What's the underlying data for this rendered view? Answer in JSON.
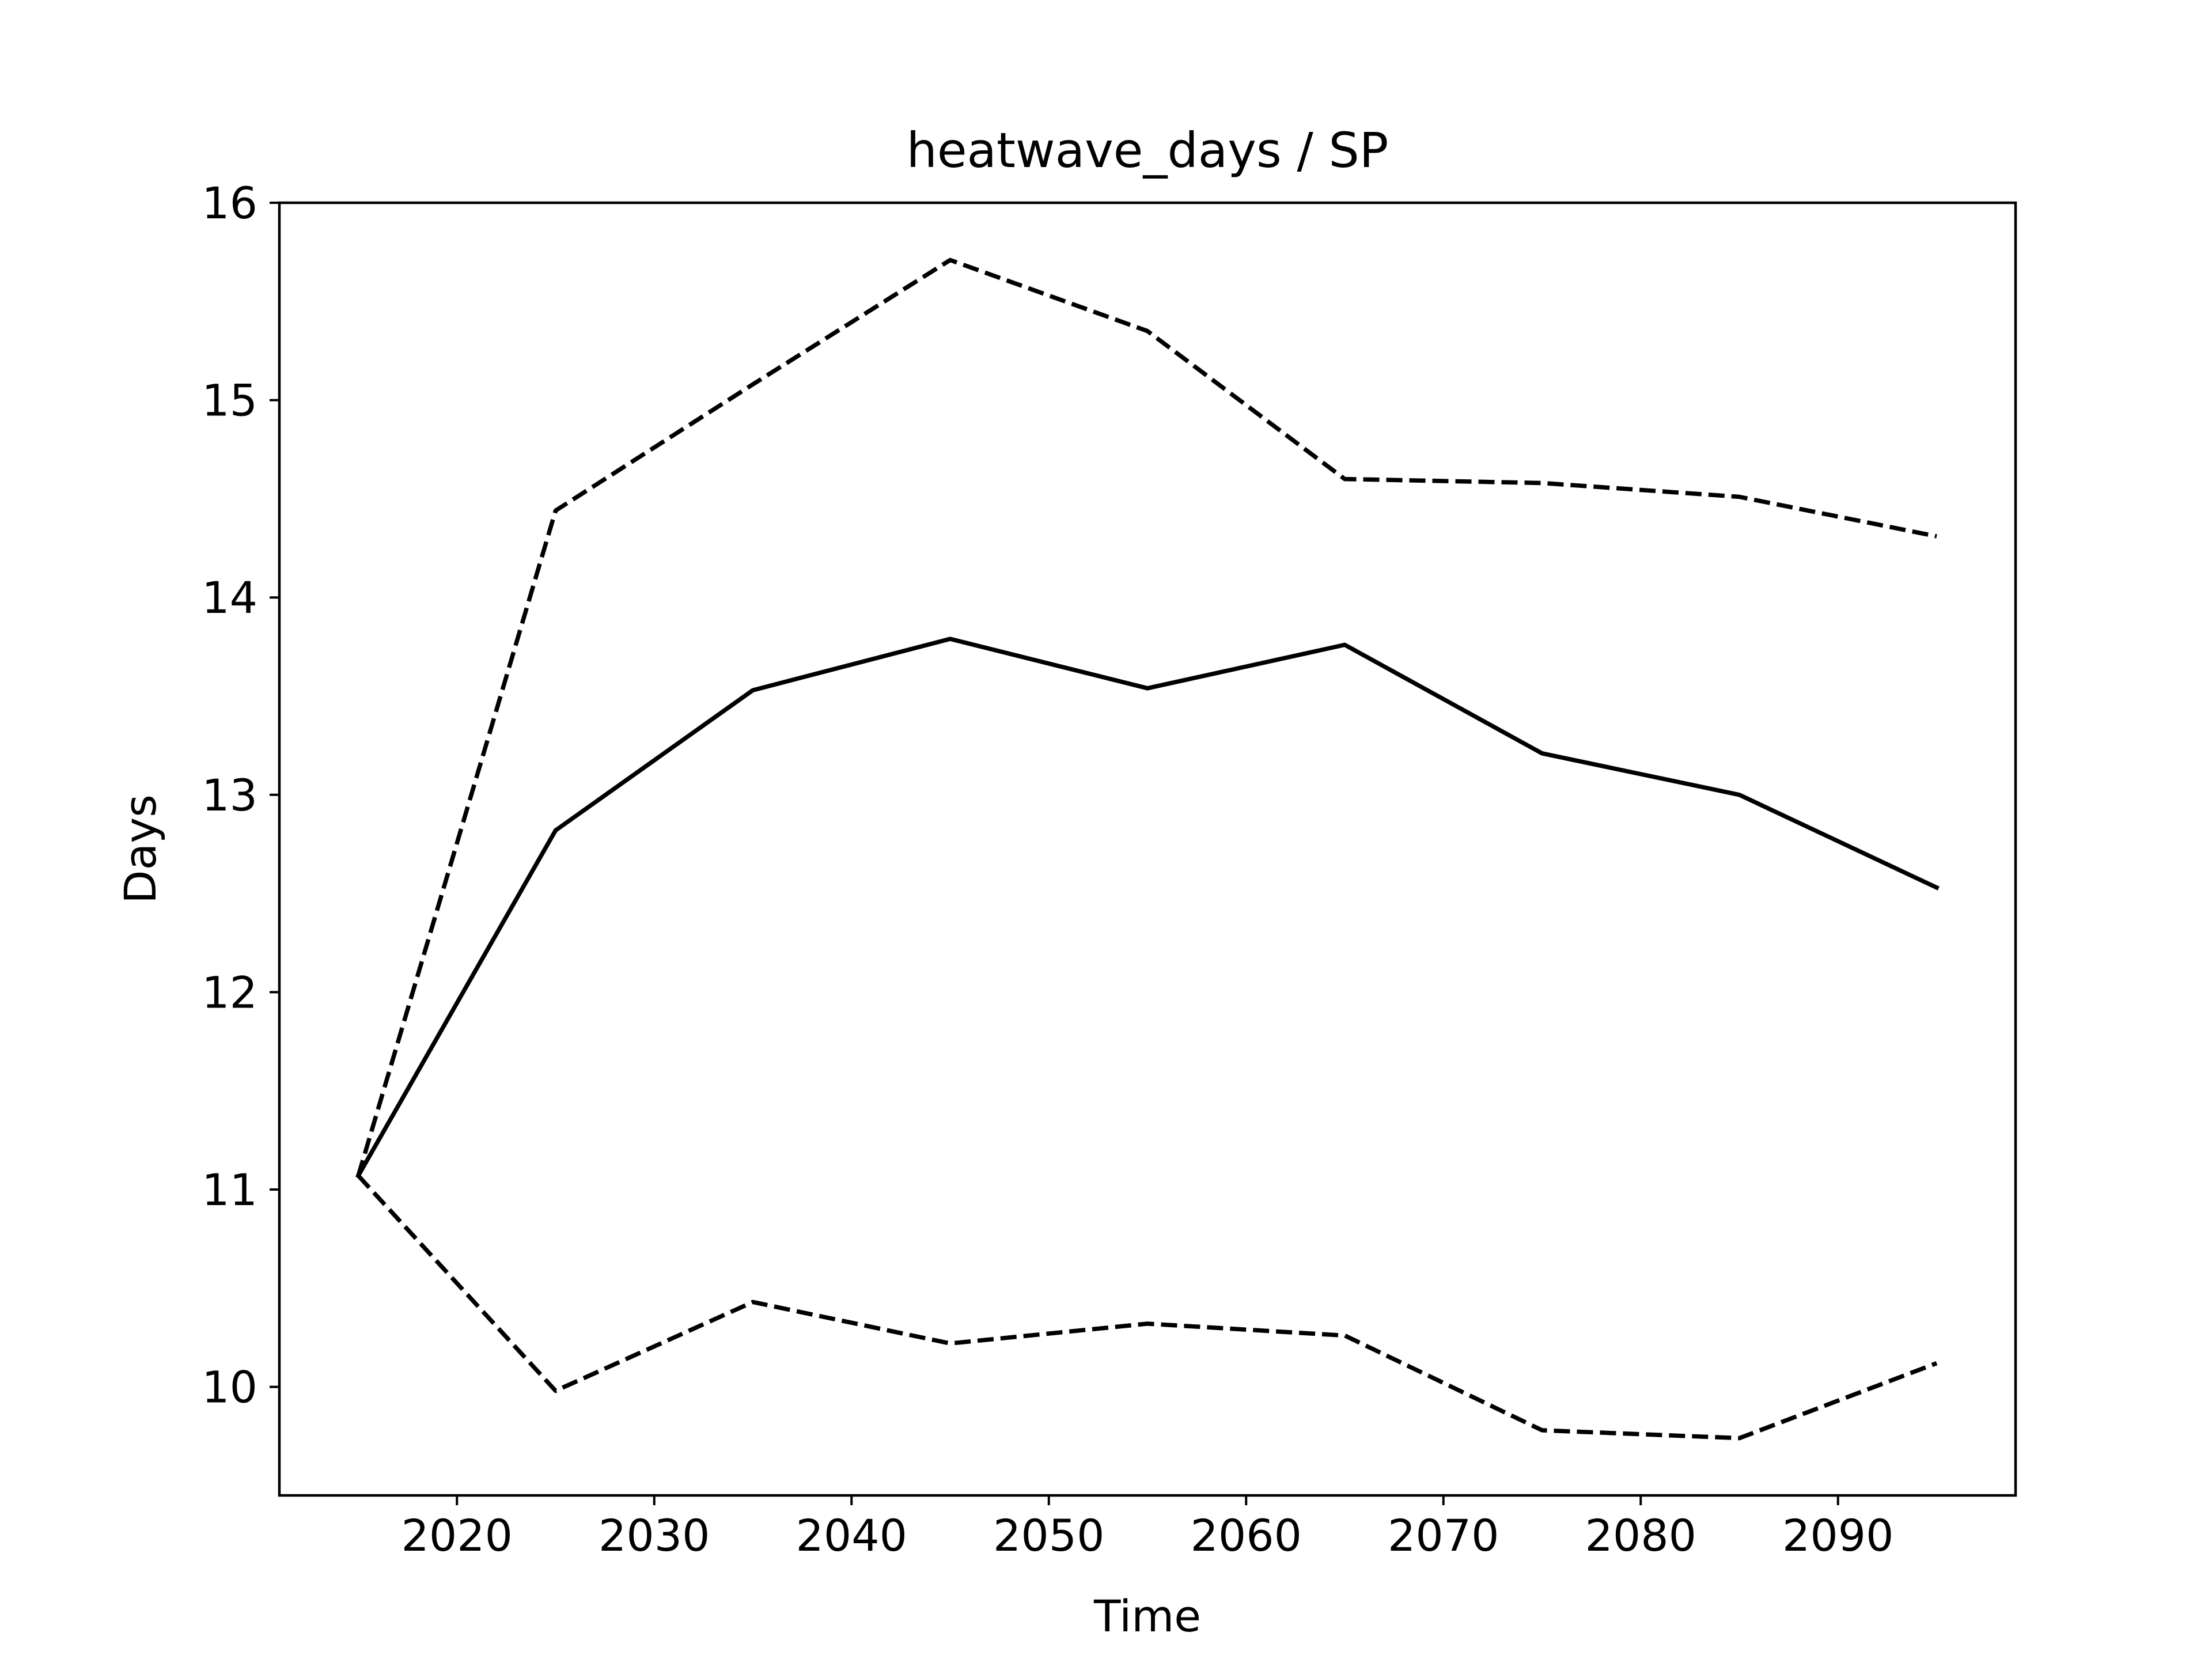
{
  "chart_data": {
    "type": "line",
    "title": "heatwave_days / SP",
    "xlabel": "Time",
    "ylabel": "Days",
    "xlim": [
      2011,
      2099
    ],
    "ylim": [
      9.45,
      16.0
    ],
    "xticks": [
      2020,
      2030,
      2040,
      2050,
      2060,
      2070,
      2080,
      2090
    ],
    "yticks": [
      10,
      11,
      12,
      13,
      14,
      15,
      16
    ],
    "grid": false,
    "x": [
      2015,
      2025,
      2035,
      2045,
      2055,
      2065,
      2075,
      2085,
      2095
    ],
    "series": [
      {
        "style": "solid",
        "color": "#000000",
        "values": [
          11.07,
          12.82,
          13.53,
          13.79,
          13.54,
          13.76,
          13.21,
          13.0,
          12.53
        ]
      },
      {
        "style": "dashed",
        "color": "#000000",
        "values": [
          11.07,
          14.44,
          15.08,
          15.71,
          15.35,
          14.6,
          14.58,
          14.51,
          14.31
        ]
      },
      {
        "style": "dashed",
        "color": "#000000",
        "values": [
          11.07,
          9.98,
          10.43,
          10.22,
          10.32,
          10.26,
          9.78,
          9.74,
          10.12
        ]
      }
    ]
  }
}
